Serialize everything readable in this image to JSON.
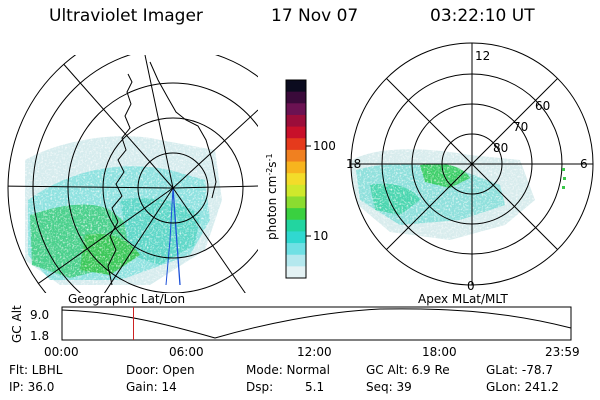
{
  "header": {
    "title": "Ultraviolet Imager",
    "date": "17 Nov 07",
    "time": "03:22:10 UT"
  },
  "colorbar": {
    "unit_prefix": "photon cm",
    "unit_exp1": "-2",
    "unit_mid": "s",
    "unit_exp2": "-1",
    "ticks": [
      "100",
      "10"
    ],
    "colors": [
      "#0b0b1f",
      "#3a0a3a",
      "#6b1252",
      "#9b0d3a",
      "#c8102a",
      "#e53a1c",
      "#f08020",
      "#f7b41e",
      "#f3dc2a",
      "#cfe82c",
      "#8bdc30",
      "#3ad040",
      "#22d5a0",
      "#30d8d0",
      "#6fe0e4",
      "#b4e8ee",
      "#e4f2f4"
    ]
  },
  "left_map": {
    "caption": "Geographic Lat/Lon"
  },
  "right_map": {
    "caption": "Apex MLat/MLT",
    "mlt_labels": {
      "top": "12",
      "left": "18",
      "right": "6",
      "bottom": "0"
    },
    "lat_labels": [
      "80",
      "70",
      "60"
    ]
  },
  "timeline": {
    "ylabel": "GC Alt",
    "y_ticks": [
      "9.0",
      "1.8"
    ],
    "x_ticks": [
      "00:00",
      "06:00",
      "12:00",
      "18:00",
      "23:59"
    ],
    "current_time_hours": 3.37
  },
  "info": {
    "flt": "Flt: LBHL",
    "ip": "IP: 36.0",
    "door": "Door: Open",
    "gain": "Gain: 14",
    "mode": "Mode: Normal",
    "dsp_label": "Dsp:",
    "dsp_value": "5.1",
    "gc_alt": "GC Alt: 6.9 Re",
    "seq": "Seq: 39",
    "glat": "GLat: -78.7",
    "glon": "GLon: 241.2"
  },
  "colors": {
    "aurora_light": "#cfe8ea",
    "aurora_cyan": "#3ad6d0",
    "aurora_green": "#3ac84a",
    "marker": "#cc2222"
  }
}
